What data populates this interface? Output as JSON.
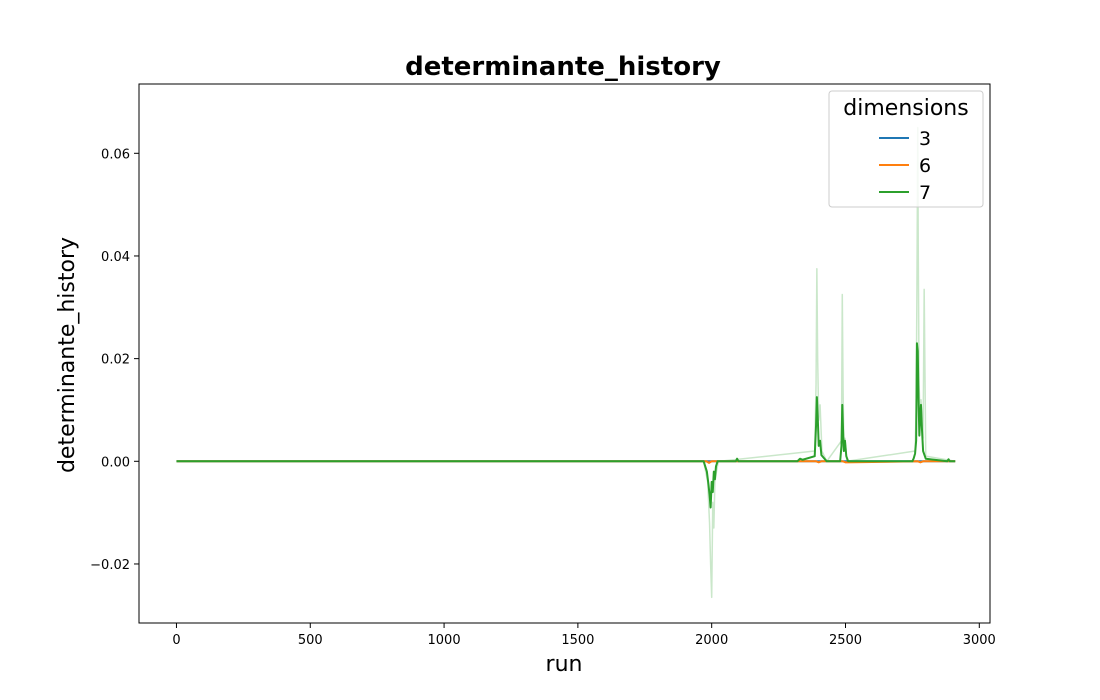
{
  "chart_data": {
    "type": "line",
    "title": "determinante_history",
    "xlabel": "run",
    "ylabel": "determinante_history",
    "xlim": [
      -140,
      3040
    ],
    "ylim": [
      -0.0315,
      0.0735
    ],
    "xticks": [
      0,
      500,
      1000,
      1500,
      2000,
      2500,
      3000
    ],
    "yticks": [
      -0.02,
      0.0,
      0.02,
      0.04,
      0.06
    ],
    "xtick_labels": [
      "0",
      "500",
      "1000",
      "1500",
      "2000",
      "2500",
      "3000"
    ],
    "ytick_labels": [
      "−0.02",
      "0.00",
      "0.02",
      "0.04",
      "0.06"
    ],
    "grid": false,
    "legend": {
      "title": "dimensions",
      "position": "top-right",
      "entries": [
        "3",
        "6",
        "7"
      ]
    },
    "series": [
      {
        "name": "3",
        "color": "#1f77b4",
        "x": [
          0,
          2910
        ],
        "y": [
          0.0,
          0.0
        ]
      },
      {
        "name": "6",
        "color": "#ff7f0e",
        "x": [
          0,
          1980,
          1990,
          2000,
          2010,
          2390,
          2400,
          2410,
          2490,
          2500,
          2770,
          2780,
          2790,
          2910
        ],
        "y": [
          0.0,
          0.0,
          -0.0003,
          0.0,
          0.0,
          0.0,
          -0.0002,
          0.0,
          0.0,
          -0.0002,
          0.0,
          -0.0002,
          0.0,
          0.0
        ]
      },
      {
        "name": "7",
        "color": "#2ca02c",
        "x": [
          0,
          1970,
          1982,
          1988,
          1992,
          1996,
          2000,
          2004,
          2008,
          2012,
          2016,
          2022,
          2030,
          2090,
          2095,
          2100,
          2320,
          2330,
          2340,
          2385,
          2390,
          2393,
          2396,
          2400,
          2405,
          2410,
          2420,
          2430,
          2480,
          2485,
          2488,
          2491,
          2494,
          2498,
          2503,
          2510,
          2750,
          2755,
          2760,
          2764,
          2767,
          2770,
          2773,
          2776,
          2779,
          2782,
          2786,
          2790,
          2800,
          2880,
          2885,
          2890,
          2910
        ],
        "y": [
          0.0,
          0.0,
          -0.002,
          -0.0045,
          -0.0065,
          -0.009,
          -0.004,
          -0.006,
          -0.002,
          -0.0035,
          -0.001,
          0.0,
          0.0,
          0.0,
          0.0005,
          0.0,
          0.0,
          0.0005,
          0.0003,
          0.001,
          0.007,
          0.0125,
          0.009,
          0.003,
          0.004,
          0.0012,
          0.0006,
          0.0,
          0.0,
          0.003,
          0.011,
          0.006,
          0.002,
          0.004,
          0.001,
          0.0,
          0.0,
          0.0006,
          0.0015,
          0.004,
          0.023,
          0.0215,
          0.012,
          0.005,
          0.0085,
          0.011,
          0.006,
          0.002,
          0.0005,
          0.0,
          0.0004,
          0.0,
          0.0
        ]
      },
      {
        "name": "",
        "color": "#2ca02c",
        "opacity": 0.25,
        "x": [
          0,
          1970,
          1985,
          1992,
          1996,
          2000,
          2004,
          2008,
          2012,
          2018,
          2025,
          2030,
          2385,
          2390,
          2393,
          2396,
          2400,
          2405,
          2412,
          2430,
          2485,
          2488,
          2491,
          2494,
          2498,
          2505,
          2760,
          2764,
          2767,
          2770,
          2772,
          2775,
          2778,
          2782,
          2786,
          2790,
          2794,
          2800,
          2910
        ],
        "y": [
          0.0,
          0.0,
          -0.004,
          -0.012,
          -0.02,
          -0.0265,
          -0.008,
          -0.013,
          -0.004,
          -0.002,
          0.0,
          0.0,
          0.002,
          0.015,
          0.0375,
          0.02,
          0.008,
          0.011,
          0.002,
          0.0,
          0.004,
          0.0325,
          0.014,
          0.003,
          0.0045,
          0.0,
          0.002,
          0.01,
          0.034,
          0.065,
          0.04,
          0.015,
          0.01,
          0.012,
          0.009,
          0.0045,
          0.0335,
          0.001,
          0.0
        ]
      }
    ]
  }
}
